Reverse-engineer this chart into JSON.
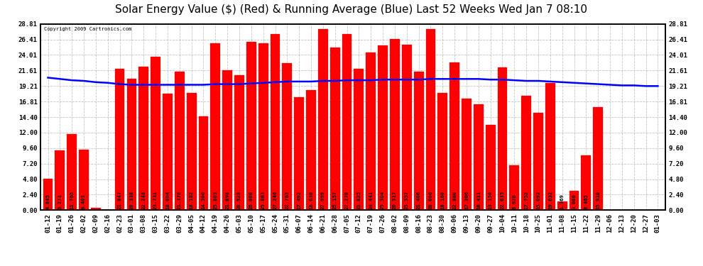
{
  "title": "Solar Energy Value ($) (Red) & Running Average (Blue) Last 52 Weeks Wed Jan 7 08:10",
  "copyright": "Copyright 2009 Cartronics.com",
  "bar_color": "#ff0000",
  "avg_line_color": "#0000ff",
  "background_color": "#ffffff",
  "grid_color": "#aaaaaa",
  "categories": [
    "01-12",
    "01-19",
    "01-26",
    "02-02",
    "02-09",
    "02-16",
    "02-23",
    "03-01",
    "03-08",
    "03-15",
    "03-22",
    "03-29",
    "04-05",
    "04-12",
    "04-19",
    "04-26",
    "05-03",
    "05-10",
    "05-17",
    "05-24",
    "05-31",
    "06-07",
    "06-14",
    "06-21",
    "06-28",
    "07-05",
    "07-12",
    "07-19",
    "07-26",
    "08-02",
    "08-09",
    "08-16",
    "08-23",
    "08-30",
    "09-06",
    "09-13",
    "09-20",
    "09-27",
    "10-04",
    "10-11",
    "10-18",
    "10-25",
    "11-01",
    "11-08",
    "11-15",
    "11-22",
    "11-29",
    "12-06",
    "12-13",
    "12-20",
    "12-27",
    "01-03"
  ],
  "values": [
    4.845,
    9.271,
    11.765,
    9.401,
    0.317,
    0.0,
    21.847,
    20.338,
    22.248,
    23.731,
    18.004,
    21.378,
    18.182,
    14.506,
    25.803,
    21.698,
    20.928,
    26.0,
    25.863,
    27.246,
    22.763,
    17.492,
    18.63,
    27.999,
    25.157,
    27.27,
    21.825,
    24.441,
    25.504,
    26.517,
    25.557,
    21.406,
    28.006,
    18.16,
    22.88,
    17.306,
    16.411,
    13.15,
    22.035,
    6.92,
    17.752,
    15.092,
    19.632,
    1.369,
    3.006,
    8.465,
    15.91,
    0.0,
    0.0,
    0.0,
    0.0,
    0.0
  ],
  "running_avg": [
    20.5,
    20.3,
    20.1,
    20.0,
    19.8,
    19.7,
    19.5,
    19.4,
    19.4,
    19.4,
    19.4,
    19.4,
    19.4,
    19.4,
    19.5,
    19.5,
    19.5,
    19.6,
    19.7,
    19.8,
    19.9,
    19.9,
    19.9,
    20.0,
    20.0,
    20.1,
    20.1,
    20.1,
    20.2,
    20.2,
    20.2,
    20.2,
    20.3,
    20.3,
    20.3,
    20.3,
    20.3,
    20.2,
    20.2,
    20.1,
    20.0,
    20.0,
    19.9,
    19.8,
    19.7,
    19.6,
    19.5,
    19.4,
    19.3,
    19.3,
    19.2,
    19.2
  ],
  "yticks": [
    0.0,
    2.4,
    4.8,
    7.2,
    9.6,
    12.0,
    14.4,
    16.81,
    19.21,
    21.61,
    24.01,
    26.41,
    28.81
  ],
  "ymax": 28.81,
  "ymin": 0.0,
  "title_fontsize": 11,
  "tick_fontsize": 6.5,
  "value_fontsize": 5.2,
  "border_color": "#000000"
}
